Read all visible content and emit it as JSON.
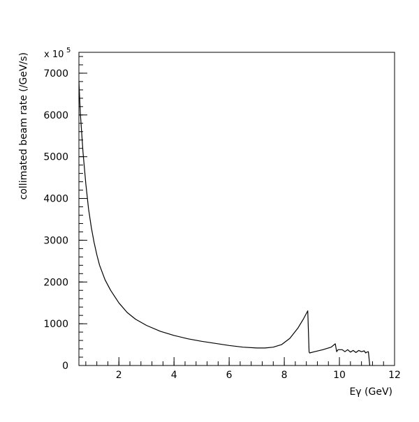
{
  "chart_data": {
    "type": "line",
    "xlabel": "Eγ (GeV)",
    "ylabel": "collimated beam rate (/GeV/s)",
    "y_multiplier_label": "x 10",
    "y_multiplier_exponent": "5",
    "xlim": [
      0.55,
      12
    ],
    "ylim": [
      0,
      7500
    ],
    "x_ticks": [
      2,
      4,
      6,
      8,
      10,
      12
    ],
    "y_ticks": [
      0,
      1000,
      2000,
      3000,
      4000,
      5000,
      6000,
      7000
    ],
    "x_tick_labels": [
      "2",
      "4",
      "6",
      "8",
      "10",
      "12"
    ],
    "y_tick_labels": [
      "0",
      "1000",
      "2000",
      "3000",
      "4000",
      "5000",
      "6000",
      "7000"
    ],
    "grid": false,
    "legend": "none",
    "series": [
      {
        "color": "#000000",
        "x": [
          0.55,
          0.6,
          0.7,
          0.8,
          0.9,
          1.0,
          1.1,
          1.2,
          1.3,
          1.5,
          1.7,
          2.0,
          2.3,
          2.6,
          3.0,
          3.5,
          4.0,
          4.5,
          5.0,
          5.5,
          6.0,
          6.5,
          7.0,
          7.3,
          7.6,
          7.9,
          8.2,
          8.5,
          8.7,
          8.85,
          8.9,
          8.92,
          9.1,
          9.4,
          9.7,
          9.85,
          9.9,
          9.95,
          10.1,
          10.2,
          10.3,
          10.4,
          10.5,
          10.6,
          10.7,
          10.8,
          10.9,
          10.95,
          11.0,
          11.05,
          11.1
        ],
        "y": [
          6800,
          6050,
          5100,
          4350,
          3750,
          3300,
          2950,
          2650,
          2400,
          2050,
          1800,
          1500,
          1270,
          1110,
          960,
          820,
          720,
          640,
          580,
          530,
          480,
          440,
          420,
          420,
          440,
          500,
          650,
          900,
          1120,
          1310,
          330,
          300,
          330,
          380,
          440,
          520,
          330,
          380,
          380,
          330,
          380,
          320,
          360,
          310,
          360,
          330,
          350,
          300,
          320,
          330,
          0
        ]
      }
    ]
  }
}
